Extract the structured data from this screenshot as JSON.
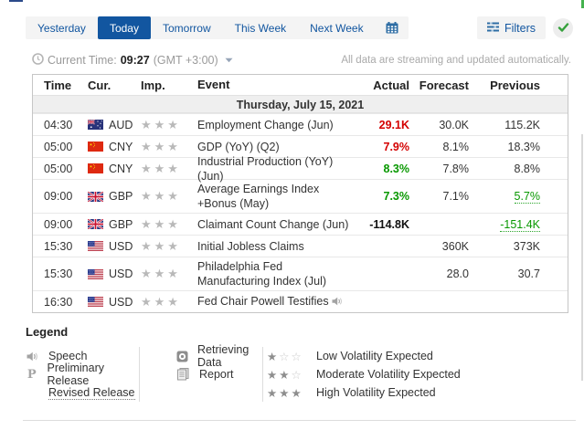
{
  "tabs": {
    "items": [
      {
        "label": "Yesterday",
        "active": false
      },
      {
        "label": "Today",
        "active": true
      },
      {
        "label": "Tomorrow",
        "active": false
      },
      {
        "label": "This Week",
        "active": false
      },
      {
        "label": "Next Week",
        "active": false
      }
    ]
  },
  "filters": {
    "label": "Filters"
  },
  "status": {
    "current_time_label": "Current Time:",
    "current_time": "09:27",
    "timezone": "(GMT +3:00)",
    "streaming_note": "All data are streaming and updated automatically."
  },
  "table": {
    "headers": [
      "Time",
      "Cur.",
      "Imp.",
      "Event",
      "Actual",
      "Forecast",
      "Previous"
    ],
    "date_header": "Thursday, July 15, 2021",
    "rows": [
      {
        "time": "04:30",
        "currency": "AUD",
        "flag": "au",
        "importance": 3,
        "event": "Employment Change (Jun)",
        "speech": false,
        "two_line": false,
        "actual": {
          "text": "29.1K",
          "style": "red"
        },
        "forecast": "30.0K",
        "previous": {
          "text": "115.2K",
          "revised": false
        }
      },
      {
        "time": "05:00",
        "currency": "CNY",
        "flag": "cn",
        "importance": 3,
        "event": "GDP (YoY) (Q2)",
        "speech": false,
        "two_line": false,
        "actual": {
          "text": "7.9%",
          "style": "red"
        },
        "forecast": "8.1%",
        "previous": {
          "text": "18.3%",
          "revised": false
        }
      },
      {
        "time": "05:00",
        "currency": "CNY",
        "flag": "cn",
        "importance": 3,
        "event": "Industrial Production (YoY) (Jun)",
        "speech": false,
        "two_line": false,
        "actual": {
          "text": "8.3%",
          "style": "green"
        },
        "forecast": "7.8%",
        "previous": {
          "text": "8.8%",
          "revised": false
        }
      },
      {
        "time": "09:00",
        "currency": "GBP",
        "flag": "gb",
        "importance": 3,
        "event": "Average Earnings Index +Bonus (May)",
        "speech": false,
        "two_line": true,
        "actual": {
          "text": "7.3%",
          "style": "green"
        },
        "forecast": "7.1%",
        "previous": {
          "text": "5.7%",
          "revised": true
        }
      },
      {
        "time": "09:00",
        "currency": "GBP",
        "flag": "gb",
        "importance": 3,
        "event": "Claimant Count Change (Jun)",
        "speech": false,
        "two_line": false,
        "actual": {
          "text": "-114.8K",
          "style": "black"
        },
        "forecast": "",
        "previous": {
          "text": "-151.4K",
          "revised": true
        }
      },
      {
        "time": "15:30",
        "currency": "USD",
        "flag": "us",
        "importance": 3,
        "event": "Initial Jobless Claims",
        "speech": false,
        "two_line": false,
        "actual": {
          "text": "",
          "style": ""
        },
        "forecast": "360K",
        "previous": {
          "text": "373K",
          "revised": false
        }
      },
      {
        "time": "15:30",
        "currency": "USD",
        "flag": "us",
        "importance": 3,
        "event": "Philadelphia Fed Manufacturing Index (Jul)",
        "speech": false,
        "two_line": true,
        "actual": {
          "text": "",
          "style": ""
        },
        "forecast": "28.0",
        "previous": {
          "text": "30.7",
          "revised": false
        }
      },
      {
        "time": "16:30",
        "currency": "USD",
        "flag": "us",
        "importance": 3,
        "event": "Fed Chair Powell Testifies",
        "speech": true,
        "two_line": false,
        "actual": {
          "text": "",
          "style": ""
        },
        "forecast": "",
        "previous": {
          "text": "",
          "revised": false
        }
      }
    ]
  },
  "legend": {
    "title": "Legend",
    "col1": [
      {
        "icon": "speech-icon",
        "label": "Speech",
        "underlined": false
      },
      {
        "icon": "preliminary-release-icon",
        "label": "Preliminary Release",
        "underlined": false
      },
      {
        "icon": "",
        "label": "Revised Release",
        "underlined": true
      }
    ],
    "col2": [
      {
        "icon": "retrieving-data-icon",
        "label": "Retrieving Data"
      },
      {
        "icon": "report-icon",
        "label": "Report"
      }
    ],
    "col3": [
      {
        "stars": 1,
        "label": "Low Volatility Expected"
      },
      {
        "stars": 2,
        "label": "Moderate Volatility Expected"
      },
      {
        "stars": 3,
        "label": "High Volatility Expected"
      }
    ]
  },
  "colors": {
    "accent_blue": "#1256a0",
    "negative_red": "#d40000",
    "positive_green": "#089800",
    "star_gray": "#b9b9b9"
  }
}
